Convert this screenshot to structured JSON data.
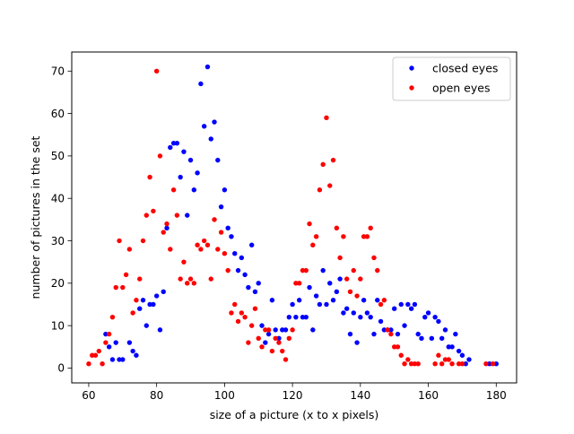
{
  "chart_data": {
    "type": "scatter",
    "title": "",
    "xlabel": "size of a picture (x to x pixels)",
    "ylabel": "number of pictures in the set",
    "xlim": [
      55,
      186
    ],
    "ylim": [
      -3.5,
      74.5
    ],
    "xticks": [
      60,
      80,
      100,
      120,
      140,
      160,
      180
    ],
    "yticks": [
      0,
      10,
      20,
      30,
      40,
      50,
      60,
      70
    ],
    "grid": false,
    "legend_position": "top-right",
    "series": [
      {
        "name": "closed eyes",
        "color": "#0000ff",
        "points": [
          [
            65,
            8
          ],
          [
            66,
            5
          ],
          [
            67,
            2
          ],
          [
            68,
            6
          ],
          [
            69,
            2
          ],
          [
            70,
            2
          ],
          [
            72,
            6
          ],
          [
            73,
            4
          ],
          [
            74,
            3
          ],
          [
            75,
            14
          ],
          [
            76,
            16
          ],
          [
            77,
            10
          ],
          [
            78,
            15
          ],
          [
            79,
            15
          ],
          [
            80,
            17
          ],
          [
            81,
            9
          ],
          [
            82,
            18
          ],
          [
            83,
            33
          ],
          [
            84,
            52
          ],
          [
            85,
            53
          ],
          [
            86,
            53
          ],
          [
            87,
            45
          ],
          [
            88,
            51
          ],
          [
            89,
            36
          ],
          [
            90,
            49
          ],
          [
            91,
            42
          ],
          [
            92,
            46
          ],
          [
            93,
            67
          ],
          [
            94,
            57
          ],
          [
            95,
            71
          ],
          [
            96,
            54
          ],
          [
            97,
            58
          ],
          [
            98,
            49
          ],
          [
            99,
            38
          ],
          [
            100,
            42
          ],
          [
            101,
            33
          ],
          [
            102,
            31
          ],
          [
            103,
            27
          ],
          [
            104,
            23
          ],
          [
            105,
            26
          ],
          [
            106,
            22
          ],
          [
            107,
            19
          ],
          [
            108,
            29
          ],
          [
            109,
            18
          ],
          [
            110,
            20
          ],
          [
            111,
            10
          ],
          [
            112,
            6
          ],
          [
            113,
            8
          ],
          [
            114,
            16
          ],
          [
            115,
            9
          ],
          [
            116,
            7
          ],
          [
            117,
            9
          ],
          [
            118,
            9
          ],
          [
            119,
            12
          ],
          [
            120,
            15
          ],
          [
            121,
            12
          ],
          [
            122,
            16
          ],
          [
            123,
            12
          ],
          [
            124,
            12
          ],
          [
            125,
            19
          ],
          [
            126,
            9
          ],
          [
            127,
            17
          ],
          [
            128,
            15
          ],
          [
            129,
            23
          ],
          [
            130,
            15
          ],
          [
            131,
            20
          ],
          [
            132,
            16
          ],
          [
            133,
            18
          ],
          [
            134,
            21
          ],
          [
            135,
            13
          ],
          [
            136,
            14
          ],
          [
            137,
            8
          ],
          [
            138,
            13
          ],
          [
            139,
            6
          ],
          [
            140,
            12
          ],
          [
            141,
            16
          ],
          [
            142,
            13
          ],
          [
            143,
            12
          ],
          [
            144,
            8
          ],
          [
            145,
            16
          ],
          [
            146,
            11
          ],
          [
            147,
            9
          ],
          [
            148,
            9
          ],
          [
            149,
            9
          ],
          [
            150,
            14
          ],
          [
            151,
            8
          ],
          [
            152,
            15
          ],
          [
            153,
            10
          ],
          [
            154,
            15
          ],
          [
            155,
            14
          ],
          [
            156,
            15
          ],
          [
            157,
            8
          ],
          [
            158,
            7
          ],
          [
            159,
            12
          ],
          [
            160,
            13
          ],
          [
            161,
            7
          ],
          [
            162,
            12
          ],
          [
            163,
            11
          ],
          [
            164,
            7
          ],
          [
            165,
            9
          ],
          [
            166,
            5
          ],
          [
            167,
            5
          ],
          [
            168,
            8
          ],
          [
            169,
            4
          ],
          [
            170,
            3
          ],
          [
            171,
            1
          ],
          [
            172,
            2
          ],
          [
            178,
            1
          ],
          [
            180,
            1
          ]
        ]
      },
      {
        "name": "open eyes",
        "color": "#ff0000",
        "points": [
          [
            60,
            1
          ],
          [
            61,
            3
          ],
          [
            62,
            3
          ],
          [
            63,
            4
          ],
          [
            64,
            1
          ],
          [
            65,
            6
          ],
          [
            66,
            8
          ],
          [
            67,
            12
          ],
          [
            68,
            19
          ],
          [
            69,
            30
          ],
          [
            70,
            19
          ],
          [
            71,
            22
          ],
          [
            72,
            28
          ],
          [
            73,
            13
          ],
          [
            74,
            16
          ],
          [
            75,
            21
          ],
          [
            76,
            30
          ],
          [
            77,
            36
          ],
          [
            78,
            45
          ],
          [
            79,
            37
          ],
          [
            80,
            70
          ],
          [
            81,
            50
          ],
          [
            82,
            32
          ],
          [
            83,
            34
          ],
          [
            84,
            28
          ],
          [
            85,
            42
          ],
          [
            86,
            36
          ],
          [
            87,
            21
          ],
          [
            88,
            25
          ],
          [
            89,
            20
          ],
          [
            90,
            21
          ],
          [
            91,
            20
          ],
          [
            92,
            29
          ],
          [
            93,
            28
          ],
          [
            94,
            30
          ],
          [
            95,
            29
          ],
          [
            96,
            21
          ],
          [
            97,
            35
          ],
          [
            98,
            28
          ],
          [
            99,
            32
          ],
          [
            100,
            27
          ],
          [
            101,
            23
          ],
          [
            102,
            13
          ],
          [
            103,
            15
          ],
          [
            104,
            11
          ],
          [
            105,
            13
          ],
          [
            106,
            12
          ],
          [
            107,
            6
          ],
          [
            108,
            10
          ],
          [
            109,
            14
          ],
          [
            110,
            7
          ],
          [
            111,
            5
          ],
          [
            112,
            9
          ],
          [
            113,
            9
          ],
          [
            114,
            4
          ],
          [
            115,
            7
          ],
          [
            116,
            6
          ],
          [
            117,
            4
          ],
          [
            118,
            2
          ],
          [
            119,
            7
          ],
          [
            120,
            9
          ],
          [
            121,
            20
          ],
          [
            122,
            20
          ],
          [
            123,
            23
          ],
          [
            124,
            23
          ],
          [
            125,
            34
          ],
          [
            126,
            29
          ],
          [
            127,
            31
          ],
          [
            128,
            42
          ],
          [
            129,
            48
          ],
          [
            130,
            59
          ],
          [
            131,
            43
          ],
          [
            132,
            49
          ],
          [
            133,
            33
          ],
          [
            134,
            26
          ],
          [
            135,
            31
          ],
          [
            136,
            21
          ],
          [
            137,
            18
          ],
          [
            138,
            23
          ],
          [
            139,
            17
          ],
          [
            140,
            21
          ],
          [
            141,
            31
          ],
          [
            142,
            31
          ],
          [
            143,
            33
          ],
          [
            144,
            26
          ],
          [
            145,
            23
          ],
          [
            146,
            15
          ],
          [
            147,
            16
          ],
          [
            148,
            9
          ],
          [
            149,
            8
          ],
          [
            150,
            5
          ],
          [
            151,
            5
          ],
          [
            152,
            3
          ],
          [
            153,
            1
          ],
          [
            154,
            2
          ],
          [
            155,
            1
          ],
          [
            156,
            1
          ],
          [
            157,
            1
          ],
          [
            162,
            1
          ],
          [
            163,
            3
          ],
          [
            164,
            1
          ],
          [
            165,
            2
          ],
          [
            166,
            2
          ],
          [
            167,
            1
          ],
          [
            169,
            1
          ],
          [
            170,
            1
          ],
          [
            177,
            1
          ],
          [
            179,
            1
          ]
        ]
      }
    ]
  }
}
